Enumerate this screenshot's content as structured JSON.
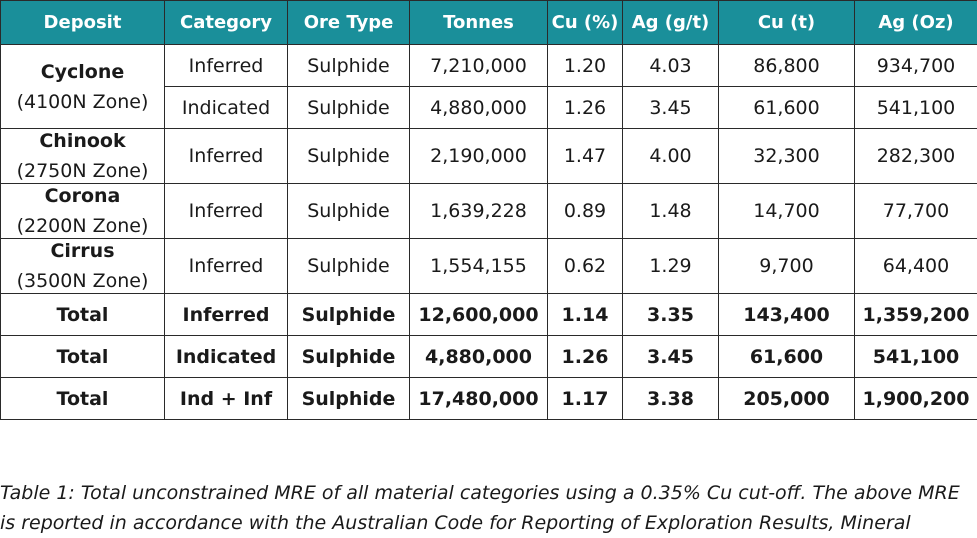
{
  "table": {
    "headers": [
      "Deposit",
      "Category",
      "Ore Type",
      "Tonnes",
      "Cu (%)",
      "Ag (g/t)",
      "Cu (t)",
      "Ag (Oz)"
    ],
    "deposits": [
      {
        "name": "Cyclone",
        "zone": "(4100N Zone)",
        "rows": [
          {
            "category": "Inferred",
            "ore_type": "Sulphide",
            "tonnes": "7,210,000",
            "cu_pct": "1.20",
            "ag_gt": "4.03",
            "cu_t": "86,800",
            "ag_oz": "934,700"
          },
          {
            "category": "Indicated",
            "ore_type": "Sulphide",
            "tonnes": "4,880,000",
            "cu_pct": "1.26",
            "ag_gt": "3.45",
            "cu_t": "61,600",
            "ag_oz": "541,100"
          }
        ]
      },
      {
        "name": "Chinook",
        "zone": "(2750N Zone)",
        "rows": [
          {
            "category": "Inferred",
            "ore_type": "Sulphide",
            "tonnes": "2,190,000",
            "cu_pct": "1.47",
            "ag_gt": "4.00",
            "cu_t": "32,300",
            "ag_oz": "282,300"
          }
        ]
      },
      {
        "name": "Corona",
        "zone": "(2200N Zone)",
        "rows": [
          {
            "category": "Inferred",
            "ore_type": "Sulphide",
            "tonnes": "1,639,228",
            "cu_pct": "0.89",
            "ag_gt": "1.48",
            "cu_t": "14,700",
            "ag_oz": "77,700"
          }
        ]
      },
      {
        "name": "Cirrus",
        "zone": "(3500N Zone)",
        "rows": [
          {
            "category": "Inferred",
            "ore_type": "Sulphide",
            "tonnes": "1,554,155",
            "cu_pct": "0.62",
            "ag_gt": "1.29",
            "cu_t": "9,700",
            "ag_oz": "64,400"
          }
        ]
      }
    ],
    "totals": [
      {
        "deposit": "Total",
        "category": "Inferred",
        "ore_type": "Sulphide",
        "tonnes": "12,600,000",
        "cu_pct": "1.14",
        "ag_gt": "3.35",
        "cu_t": "143,400",
        "ag_oz": "1,359,200"
      },
      {
        "deposit": "Total",
        "category": "Indicated",
        "ore_type": "Sulphide",
        "tonnes": "4,880,000",
        "cu_pct": "1.26",
        "ag_gt": "3.45",
        "cu_t": "61,600",
        "ag_oz": "541,100"
      },
      {
        "deposit": "Total",
        "category": "Ind + Inf",
        "ore_type": "Sulphide",
        "tonnes": "17,480,000",
        "cu_pct": "1.17",
        "ag_gt": "3.38",
        "cu_t": "205,000",
        "ag_oz": "1,900,200"
      }
    ]
  },
  "caption": {
    "line1": "Table 1: Total unconstrained MRE of all material categories using a 0.35% Cu cut-off. The above MRE",
    "line2": "is reported in accordance with the Australian Code for Reporting of Exploration Results, Mineral"
  },
  "colors": {
    "header_bg": "#1a8f9a",
    "header_text": "#ffffff",
    "border": "#2a2a2a"
  }
}
